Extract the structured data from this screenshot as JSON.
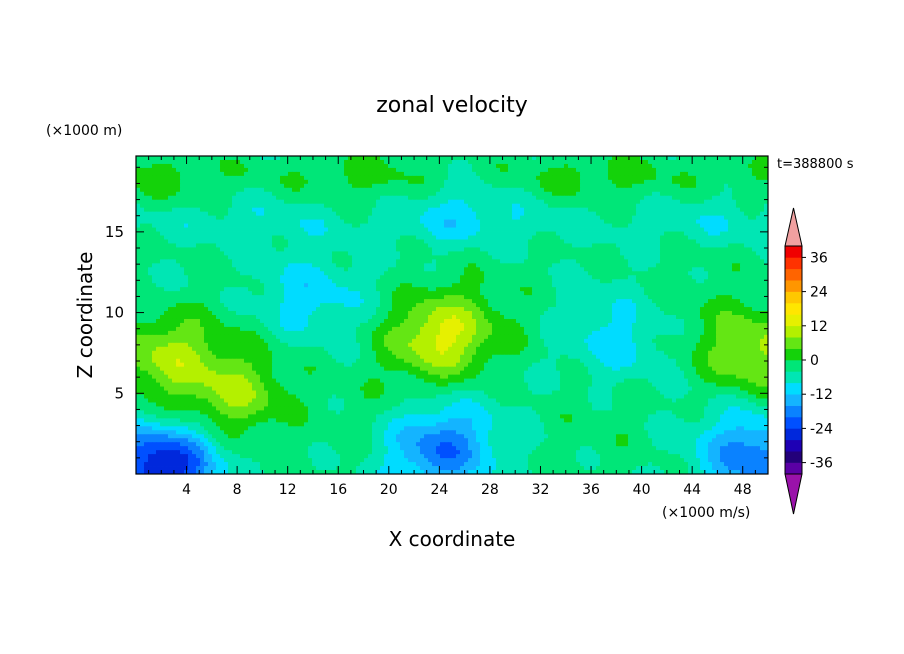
{
  "chart_data": {
    "type": "heatmap",
    "title": "zonal velocity",
    "xlabel": "X coordinate",
    "ylabel": "Z coordinate",
    "x_unit": "(×1000 m/s)",
    "y_unit": "(×1000 m)",
    "time_label": "t=388800 s",
    "xlim": [
      0,
      50
    ],
    "ylim": [
      0,
      19.7
    ],
    "x_ticks": [
      "4",
      "8",
      "12",
      "16",
      "20",
      "24",
      "28",
      "32",
      "36",
      "40",
      "44",
      "48"
    ],
    "y_ticks": [
      "5",
      "10",
      "15"
    ],
    "colorbar": {
      "levels": [
        -40,
        -36,
        -32,
        -28,
        -24,
        -20,
        -16,
        -12,
        -8,
        -4,
        0,
        4,
        8,
        12,
        16,
        20,
        24,
        28,
        32,
        36,
        40
      ],
      "colors": [
        "#5a00a5",
        "#23007a",
        "#1e00b4",
        "#0028dc",
        "#0050ff",
        "#0a82ff",
        "#14b4ff",
        "#00dcff",
        "#00e6b4",
        "#00e678",
        "#14d20a",
        "#64e614",
        "#b4f000",
        "#e6f000",
        "#ffe600",
        "#ffc800",
        "#ff9600",
        "#ff6400",
        "#ff3200",
        "#f00000"
      ],
      "under_color": "#9a12aa",
      "over_color": "#f0a0a0",
      "tick_labels": [
        "36",
        "24",
        "12",
        "0",
        "-12",
        "-24",
        "-36"
      ]
    },
    "features": [
      {
        "x": 24,
        "z": 8.5,
        "value": 14
      },
      {
        "x": 2.5,
        "z": 7.5,
        "value": 10
      },
      {
        "x": 8,
        "z": 4.8,
        "value": 10
      },
      {
        "x": 49,
        "z": 7.5,
        "value": 10
      },
      {
        "x": 13,
        "z": 11,
        "value": -10
      },
      {
        "x": 38,
        "z": 8,
        "value": -8
      },
      {
        "x": 2,
        "z": 0.5,
        "value": -28
      },
      {
        "x": 24,
        "z": 1.5,
        "value": -18
      },
      {
        "x": 49,
        "z": 1,
        "value": -18
      },
      {
        "x": 25,
        "z": 16.5,
        "value": -6
      }
    ]
  }
}
